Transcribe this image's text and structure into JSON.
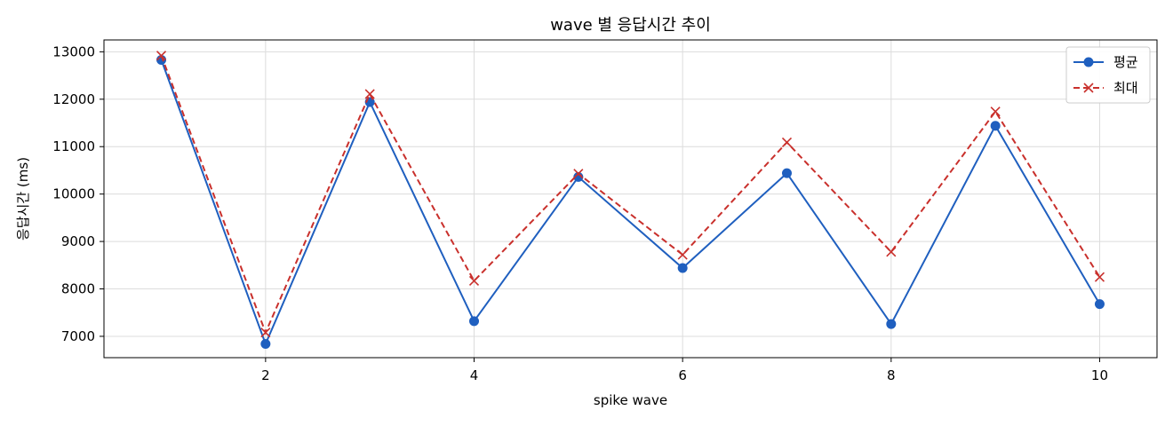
{
  "chart_data": {
    "type": "line",
    "title": "wave 별 응답시간 추이",
    "xlabel": "spike wave",
    "ylabel": "응답시간 (ms)",
    "xlim": [
      0.45,
      10.55
    ],
    "ylim": [
      6550,
      13250
    ],
    "x_ticks": [
      2,
      4,
      6,
      8,
      10
    ],
    "y_ticks": [
      7000,
      8000,
      9000,
      10000,
      11000,
      12000,
      13000
    ],
    "grid": true,
    "legend_position": "top-right",
    "x": [
      1,
      2,
      3,
      4,
      5,
      6,
      7,
      8,
      9,
      10
    ],
    "series": [
      {
        "name": "평균",
        "color": "#1f5fbf",
        "line_style": "solid",
        "marker": "circle",
        "values": [
          12830,
          6840,
          11940,
          7320,
          10360,
          8440,
          10440,
          7260,
          11440,
          7680
        ]
      },
      {
        "name": "최대",
        "color": "#c9302c",
        "line_style": "dashed",
        "marker": "x",
        "values": [
          12920,
          7080,
          12110,
          8170,
          10430,
          8720,
          11090,
          8780,
          11740,
          8250
        ]
      }
    ]
  }
}
